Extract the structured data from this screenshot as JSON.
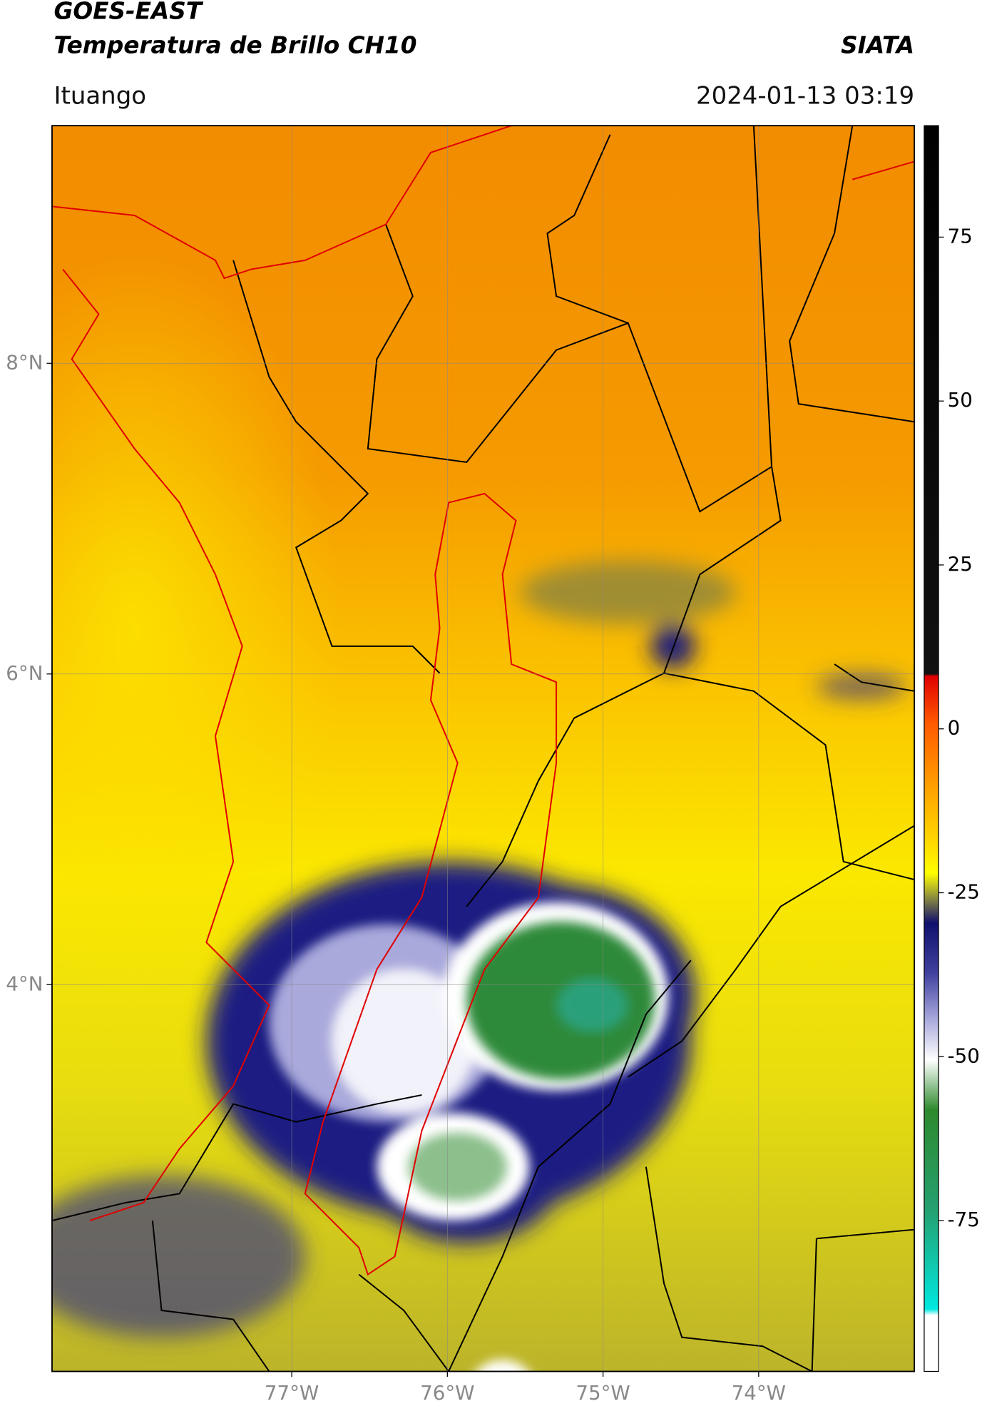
{
  "header": {
    "title": "GOES-EAST",
    "subtitle": "Temperatura de Brillo CH10",
    "source": "SIATA",
    "location": "Ituango",
    "datetime": "2024-01-13 03:19"
  },
  "map": {
    "xlim": [
      -78.54,
      -73.0
    ],
    "ylim": [
      1.51,
      9.53
    ],
    "xticks": [
      {
        "value": -77,
        "label": "77°W"
      },
      {
        "value": -76,
        "label": "76°W"
      },
      {
        "value": -75,
        "label": "75°W"
      },
      {
        "value": -74,
        "label": "74°W"
      }
    ],
    "yticks": [
      {
        "value": 8,
        "label": "8°N"
      },
      {
        "value": 6,
        "label": "6°N"
      },
      {
        "value": 4,
        "label": "4°N"
      }
    ],
    "grid": true
  },
  "colorbar": {
    "lim": [
      -98,
      92
    ],
    "ticks": [
      75,
      50,
      25,
      0,
      -25,
      -50,
      -75
    ]
  }
}
